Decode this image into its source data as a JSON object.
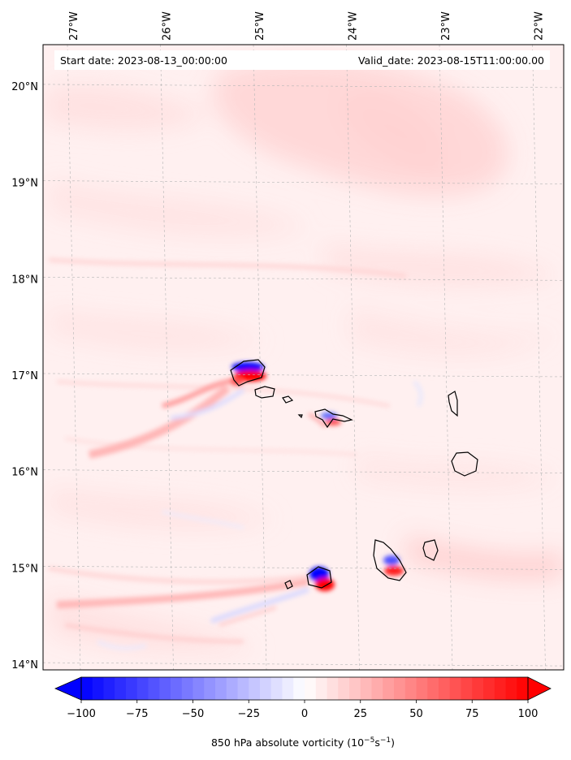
{
  "map": {
    "start_label": "Start date: 2023-08-13_00:00:00",
    "valid_label": "Valid_date: 2023-08-15T11:00:00.00",
    "lon_ticks": [
      {
        "lon": -27,
        "label": "27°W"
      },
      {
        "lon": -26,
        "label": "26°W"
      },
      {
        "lon": -25,
        "label": "25°W"
      },
      {
        "lon": -24,
        "label": "24°W"
      },
      {
        "lon": -23,
        "label": "23°W"
      },
      {
        "lon": -22,
        "label": "22°W"
      }
    ],
    "lat_ticks": [
      {
        "lat": 20,
        "label": "20°N"
      },
      {
        "lat": 19,
        "label": "19°N"
      },
      {
        "lat": 18,
        "label": "18°N"
      },
      {
        "lat": 17,
        "label": "17°N"
      },
      {
        "lat": 16,
        "label": "16°N"
      },
      {
        "lat": 15,
        "label": "15°N"
      },
      {
        "lat": 14,
        "label": "14°N"
      }
    ],
    "colors": {
      "min": "#0000ff",
      "mid": "#ffffff",
      "max": "#ff0000"
    }
  },
  "colorbar": {
    "min": -100,
    "max": 100,
    "ticks": [
      {
        "value": -100,
        "label": "−100"
      },
      {
        "value": -75,
        "label": "−75"
      },
      {
        "value": -50,
        "label": "−50"
      },
      {
        "value": -25,
        "label": "−25"
      },
      {
        "value": 0,
        "label": "0"
      },
      {
        "value": 25,
        "label": "25"
      },
      {
        "value": 50,
        "label": "50"
      },
      {
        "value": 75,
        "label": "75"
      },
      {
        "value": 100,
        "label": "100"
      }
    ],
    "label_main": "850 hPa absolute vorticity (10",
    "label_exp1": "−5",
    "label_mid": "s",
    "label_exp2": "−1",
    "label_end": ")"
  }
}
